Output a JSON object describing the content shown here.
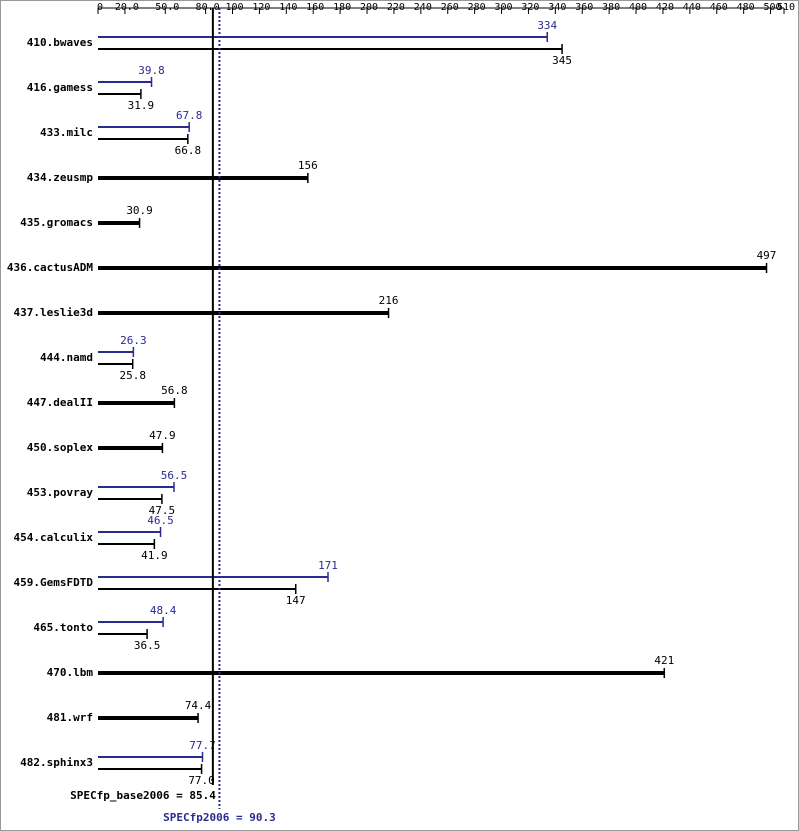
{
  "chart_data": {
    "type": "bar",
    "orientation": "horizontal",
    "categories": [
      "410.bwaves",
      "416.gamess",
      "433.milc",
      "434.zeusmp",
      "435.gromacs",
      "436.cactusADM",
      "437.leslie3d",
      "444.namd",
      "447.dealII",
      "450.soplex",
      "453.povray",
      "454.calculix",
      "459.GemsFDTD",
      "465.tonto",
      "470.lbm",
      "481.wrf",
      "482.sphinx3"
    ],
    "series": [
      {
        "color": "#2b2b8f",
        "values": [
          334,
          39.8,
          67.8,
          null,
          null,
          null,
          null,
          26.3,
          null,
          null,
          56.5,
          46.5,
          171,
          48.4,
          null,
          null,
          77.7
        ],
        "value_labels": [
          "334",
          "39.8",
          "67.8",
          null,
          null,
          null,
          null,
          "26.3",
          null,
          null,
          "56.5",
          "46.5",
          "171",
          "48.4",
          null,
          null,
          "77.7"
        ]
      },
      {
        "color": "#000000",
        "values": [
          345,
          31.9,
          66.8,
          156,
          30.9,
          497,
          216,
          25.8,
          56.8,
          47.9,
          47.5,
          41.9,
          147,
          36.5,
          421,
          74.4,
          77
        ],
        "value_labels": [
          "345",
          "31.9",
          "66.8",
          "156",
          "30.9",
          "497",
          "216",
          "25.8",
          "56.8",
          "47.9",
          "47.5",
          "41.9",
          "147",
          "36.5",
          "421",
          "74.4",
          "77.0"
        ]
      }
    ],
    "xlim": [
      0,
      510
    ],
    "xticks": [
      0,
      {
        "value": 20,
        "label": "20.0"
      },
      {
        "value": 50,
        "label": "50.0"
      },
      {
        "value": 80,
        "label": "80.0"
      },
      100,
      120,
      140,
      160,
      180,
      200,
      220,
      240,
      260,
      280,
      300,
      320,
      340,
      360,
      380,
      400,
      420,
      440,
      460,
      480,
      500,
      510
    ],
    "reference_lines": [
      {
        "label": "SPECfp_base2006 = 85.4",
        "value": 85.4,
        "color": "#000000",
        "style": "solid"
      },
      {
        "label": "SPECfp2006 = 90.3",
        "value": 90.3,
        "color": "#2b2b8f",
        "style": "dotted"
      }
    ]
  }
}
